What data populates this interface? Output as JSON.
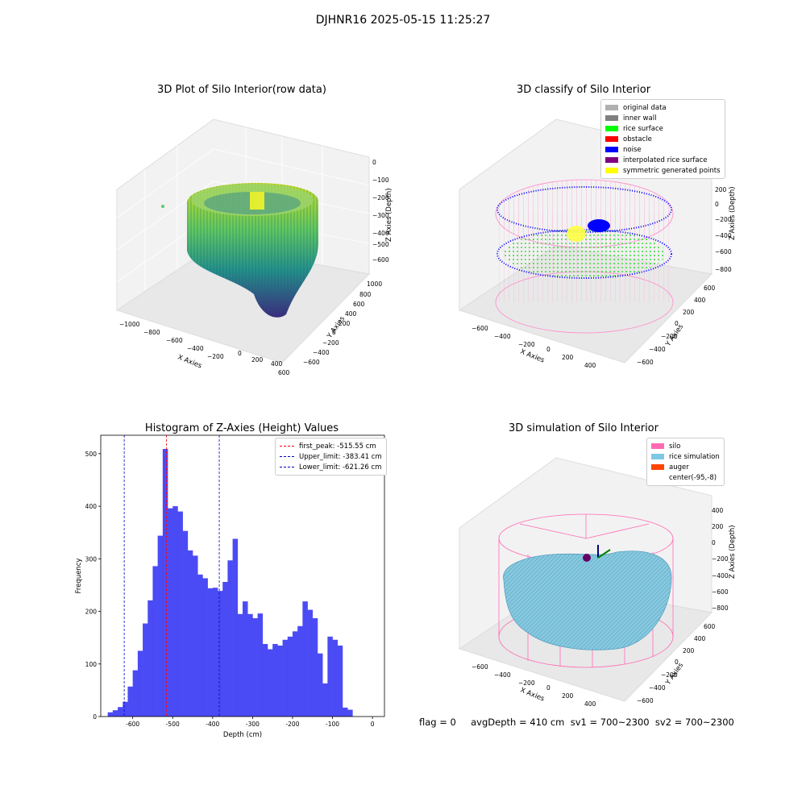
{
  "suptitle": "DJHNR16 2025-05-15 11:25:27",
  "footer": "flag = 0     avgDepth = 410 cm  sv1 = 700~2300  sv2 = 700~2300",
  "colors": {
    "hist": "#4b4bf5",
    "first_peak": "#ff0000",
    "limit": "#0000cc",
    "silo": "#ff69b4",
    "rice": "#7ec8e3",
    "auger": "#ff4500"
  },
  "chart_data": [
    {
      "type": "scatter",
      "title": "3D Plot of Silo Interior(row data)",
      "xlabel": "X Axies",
      "ylabel": "Y Axies",
      "zlabel": "Z Axies (Depth)",
      "xticks": [
        "−1000",
        "−800",
        "−600",
        "−400",
        "−200",
        "0",
        "200",
        "400",
        "600"
      ],
      "yticks": [
        "−600",
        "−400",
        "−200",
        "0",
        "200",
        "400",
        "600",
        "800",
        "1000"
      ],
      "zticks": [
        "0",
        "−100",
        "−200",
        "−300",
        "−400",
        "−500",
        "−600"
      ],
      "grid": true
    },
    {
      "type": "scatter",
      "title": "3D classify of Silo Interior",
      "xlabel": "X Axies",
      "ylabel": "Y Axies",
      "zlabel": "Z Axies (Depth)",
      "xticks": [
        "−600",
        "−400",
        "−200",
        "0",
        "200",
        "400"
      ],
      "yticks": [
        "−600",
        "−400",
        "−200",
        "0",
        "200",
        "400",
        "600"
      ],
      "zticks": [
        "200",
        "0",
        "−200",
        "−400",
        "−600",
        "−800"
      ],
      "legend": [
        {
          "name": "original data",
          "color": "#b0b0b0"
        },
        {
          "name": "inner wall",
          "color": "#808080"
        },
        {
          "name": "rice surface",
          "color": "#00ff00"
        },
        {
          "name": "obstacle",
          "color": "#ff0000"
        },
        {
          "name": "noise",
          "color": "#0000ff"
        },
        {
          "name": "interpolated rice surface",
          "color": "#800080"
        },
        {
          "name": "symmetric generated points",
          "color": "#ffff00"
        }
      ],
      "legend_loc": "upper right",
      "grid": true
    },
    {
      "type": "bar",
      "title": "Histogram of Z-Axies (Height) Values",
      "xlabel": "Depth (cm)",
      "ylabel": "Frequency",
      "xlim": [
        -680,
        30
      ],
      "ylim": [
        0,
        535
      ],
      "xticks": [
        -600,
        -500,
        -400,
        -300,
        -200,
        -100,
        0
      ],
      "yticks": [
        0,
        100,
        200,
        300,
        400,
        500
      ],
      "bin_width": 12.5,
      "bin_start": -662.5,
      "values": [
        8,
        12,
        18,
        28,
        57,
        88,
        125,
        177,
        221,
        286,
        344,
        509,
        396,
        400,
        390,
        353,
        316,
        306,
        270,
        263,
        244,
        245,
        239,
        256,
        297,
        338,
        195,
        219,
        195,
        187,
        196,
        138,
        128,
        138,
        135,
        146,
        152,
        162,
        172,
        219,
        203,
        187,
        120,
        63,
        152,
        146,
        135,
        17,
        13
      ],
      "vlines": [
        {
          "x": -515.55,
          "name": "first_peak: -515.55 cm",
          "color": "#ff0000"
        },
        {
          "x": -383.41,
          "name": "Upper_limit: -383.41 cm",
          "color": "#0000cc"
        },
        {
          "x": -621.26,
          "name": "Lower_limit: -621.26 cm",
          "color": "#0000cc"
        }
      ],
      "legend_loc": "upper right",
      "grid": false
    },
    {
      "type": "area",
      "title": "3D simulation of Silo Interior",
      "xlabel": "X Axies",
      "ylabel": "Y Axies",
      "zlabel": "Z Axies (Depth)",
      "xticks": [
        "−600",
        "−400",
        "−200",
        "0",
        "200",
        "400"
      ],
      "yticks": [
        "−600",
        "−400",
        "−200",
        "0",
        "200",
        "400",
        "600"
      ],
      "zticks": [
        "400",
        "200",
        "0",
        "−200",
        "−400",
        "−600",
        "−800"
      ],
      "legend": [
        {
          "name": "silo",
          "color": "#ff69b4"
        },
        {
          "name": "rice simulation",
          "color": "#7ec8e3"
        },
        {
          "name": "auger",
          "color": "#ff4500"
        },
        {
          "name": "center(-95,-8)",
          "color": ""
        }
      ],
      "legend_loc": "upper right",
      "grid": true
    }
  ]
}
